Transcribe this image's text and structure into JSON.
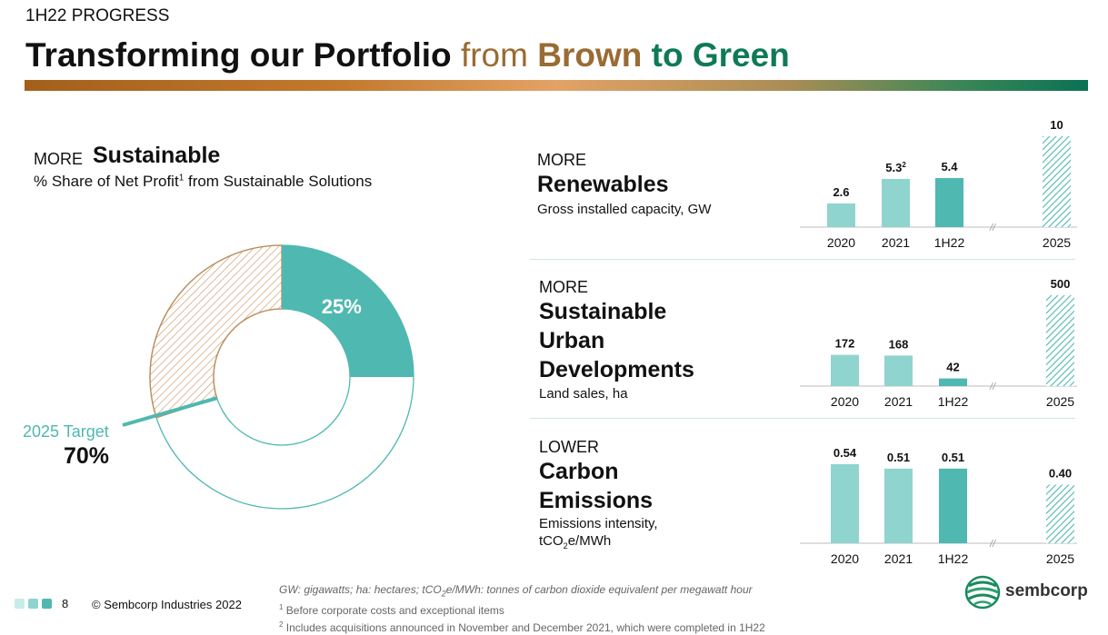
{
  "header": {
    "kicker": "1H22 PROGRESS",
    "title_part1": "Transforming our Portfolio ",
    "title_part2": "from ",
    "title_part3": "Brown ",
    "title_part4": "to Green"
  },
  "sustainable": {
    "more": "MORE",
    "title": "Sustainable",
    "subtitle_pre": "% Share of Net Profit",
    "subtitle_sup": "1",
    "subtitle_post": " from Sustainable Solutions",
    "current_label": "25%",
    "target_label": "2025 Target",
    "target_value": "70%"
  },
  "sections": {
    "renewables": {
      "more": "MORE",
      "title_lines": [
        "Renewables"
      ],
      "subtitle_lines": [
        "Gross installed capacity, GW"
      ]
    },
    "urban": {
      "more": "MORE",
      "title_lines": [
        "Sustainable",
        "Urban",
        "Developments"
      ],
      "subtitle_lines": [
        "Land sales, ha"
      ]
    },
    "carbon": {
      "more": "LOWER",
      "title_lines": [
        "Carbon",
        "Emissions"
      ],
      "subtitle_lines": [
        "Emissions intensity,",
        "tCO2e/MWh"
      ]
    }
  },
  "chart_data": [
    {
      "type": "pie",
      "categories": [
        "Sustainable solutions (1H22)",
        "2025 Target increment"
      ],
      "values": [
        25,
        45
      ],
      "labels": [
        "25%",
        "70%"
      ],
      "colors": {
        "current": "#4fb8b1",
        "target_hatch": "#c98a55",
        "outline": "#4fb8b1"
      }
    },
    {
      "type": "bar",
      "categories": [
        "2020",
        "2021",
        "1H22",
        "2025"
      ],
      "values": [
        2.6,
        5.3,
        5.4,
        10
      ],
      "value_labels": [
        "2.6",
        "5.3",
        "5.4",
        "10"
      ],
      "value_superscripts": [
        "",
        "2",
        "",
        ""
      ],
      "ylim": [
        0,
        10
      ],
      "axis_break": "//",
      "target_hatched": [
        false,
        false,
        false,
        true
      ]
    },
    {
      "type": "bar",
      "categories": [
        "2020",
        "2021",
        "1H22",
        "2025"
      ],
      "values": [
        172,
        168,
        42,
        500
      ],
      "value_labels": [
        "172",
        "168",
        "42",
        "500"
      ],
      "value_superscripts": [
        "",
        "",
        "",
        ""
      ],
      "ylim": [
        0,
        500
      ],
      "axis_break": "//",
      "target_hatched": [
        false,
        false,
        false,
        true
      ]
    },
    {
      "type": "bar",
      "categories": [
        "2020",
        "2021",
        "1H22",
        "2025"
      ],
      "values": [
        0.54,
        0.51,
        0.51,
        0.4
      ],
      "value_labels": [
        "0.54",
        "0.51",
        "0.51",
        "0.40"
      ],
      "value_superscripts": [
        "",
        "",
        "",
        ""
      ],
      "ylim": [
        0,
        0.54
      ],
      "axis_break": "//",
      "target_hatched": [
        false,
        false,
        false,
        true
      ]
    }
  ],
  "colors": {
    "bar_light": "#8fd4cf",
    "bar_current": "#4fb8b1",
    "hatch": "#4fb8b1",
    "axis": "#bdbdbd"
  },
  "footer": {
    "page_number": "8",
    "copyright": "© Sembcorp Industries 2022",
    "glossary": "GW: gigawatts; ha: hectares; tCO2e/MWh: tonnes of carbon dioxide equivalent per megawatt hour",
    "note1_sup": "1",
    "note1": " Before corporate costs and exceptional items",
    "note2_sup": "2",
    "note2": " Includes acquisitions announced in November and December 2021, which were completed in 1H22",
    "logo_text": "sembcorp",
    "logo_icon": "sembcorp-swirl-icon"
  }
}
